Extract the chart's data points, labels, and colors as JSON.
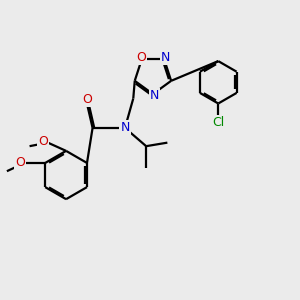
{
  "bg_color": "#ebebeb",
  "bond_color": "#000000",
  "N_color": "#0000cc",
  "O_color": "#cc0000",
  "Cl_color": "#008800",
  "line_width": 1.6,
  "dbo": 0.055,
  "figsize": [
    3.0,
    3.0
  ],
  "dpi": 100,
  "xlim": [
    0,
    10
  ],
  "ylim": [
    0,
    10
  ]
}
